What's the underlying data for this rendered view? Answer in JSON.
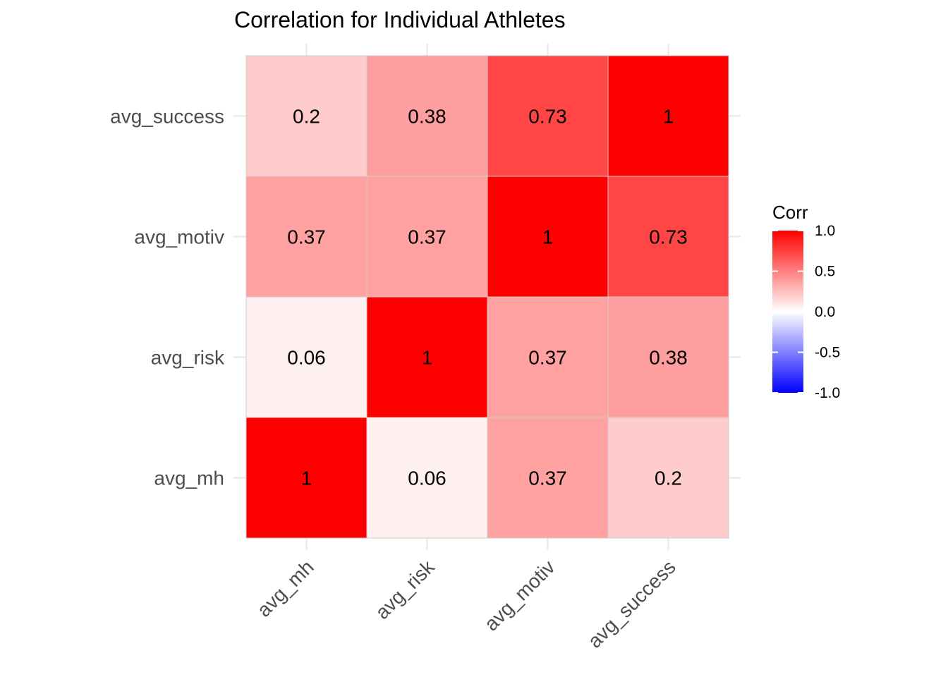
{
  "chart_data": {
    "type": "heatmap",
    "title": "Correlation for Individual Athletes",
    "x_categories": [
      "avg_mh",
      "avg_risk",
      "avg_motiv",
      "avg_success"
    ],
    "y_categories": [
      "avg_mh",
      "avg_risk",
      "avg_motiv",
      "avg_success"
    ],
    "matrix": [
      [
        1,
        0.06,
        0.37,
        0.2
      ],
      [
        0.06,
        1,
        0.37,
        0.38
      ],
      [
        0.37,
        0.37,
        1,
        0.73
      ],
      [
        0.2,
        0.38,
        0.73,
        1
      ]
    ],
    "value_range": [
      -1,
      1
    ],
    "colors": {
      "low": "#0000ff",
      "mid": "#ffffff",
      "high": "#ff0000",
      "cell_border": "#cccccc",
      "grid": "#ebebeb"
    },
    "legend": {
      "title": "Corr",
      "position": "right",
      "ticks": [
        "1.0",
        "0.5",
        "0.0",
        "-0.5",
        "-1.0"
      ],
      "tick_values": [
        1,
        0.5,
        0,
        -0.5,
        -1
      ]
    },
    "grid": true
  }
}
